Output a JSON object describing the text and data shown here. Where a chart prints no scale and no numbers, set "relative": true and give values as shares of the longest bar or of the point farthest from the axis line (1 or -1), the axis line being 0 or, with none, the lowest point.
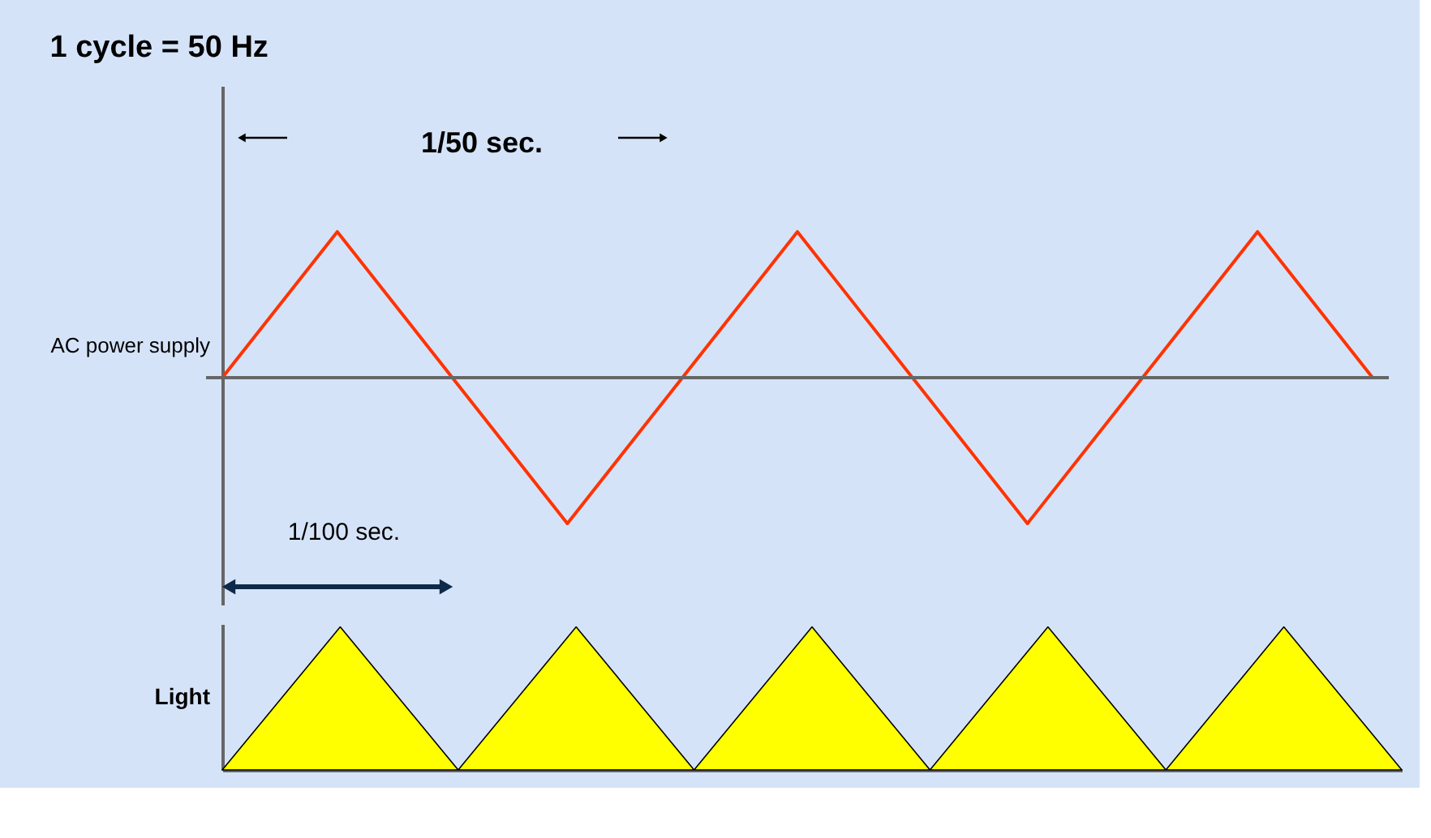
{
  "chart_data": [
    {
      "type": "line",
      "title": "1 cycle = 50 Hz",
      "ylabel": "AC power supply",
      "relative": true,
      "categories": [
        null,
        null,
        null,
        null,
        null,
        null,
        null,
        null,
        null,
        null,
        null
      ],
      "series": [
        {
          "color": "#ff3300",
          "values": [
            0,
            1,
            0,
            -1,
            0,
            1,
            0,
            -1,
            0,
            1,
            0
          ]
        }
      ],
      "ref_lines": [
        {
          "axis": "y",
          "value": 0,
          "color": "#666666"
        }
      ],
      "annotations": [
        "1/50 sec.",
        "1/100 sec."
      ]
    },
    {
      "type": "area",
      "ylabel": "Light",
      "relative": true,
      "categories": [
        null,
        null,
        null,
        null,
        null,
        null,
        null,
        null,
        null,
        null,
        null
      ],
      "series": [
        {
          "color": "#ffff00",
          "values": [
            0,
            1,
            0,
            1,
            0,
            1,
            0,
            1,
            0,
            1,
            0
          ]
        }
      ]
    }
  ]
}
